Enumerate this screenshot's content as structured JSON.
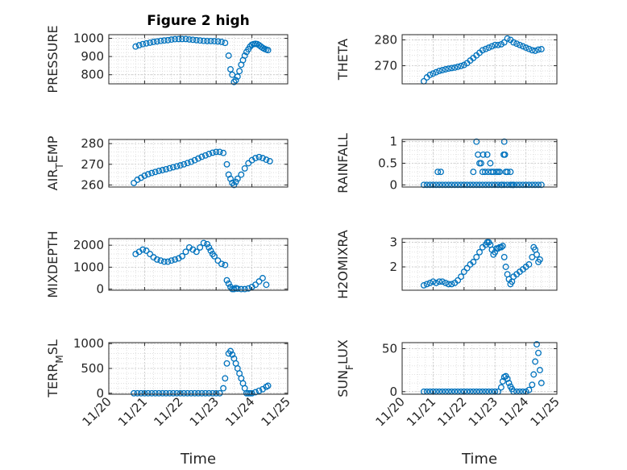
{
  "title": "Figure 2 high",
  "colors": {
    "marker": "#0072BD",
    "axis": "#262626",
    "grid": "#d9d9d9"
  },
  "chart_data": [
    {
      "type": "scatter",
      "ylabel": "PRESSURE",
      "ylim": [
        750,
        1020
      ],
      "yticks": [
        800,
        900,
        1000
      ],
      "ytick_labels": [
        "800",
        "900",
        "1000"
      ],
      "grid": true,
      "xlim": [
        20,
        25
      ],
      "xticks": [
        20,
        21,
        22,
        23,
        24,
        25
      ],
      "xtick_labels": [],
      "x": [
        20.75,
        20.85,
        20.95,
        21.05,
        21.15,
        21.25,
        21.35,
        21.45,
        21.55,
        21.65,
        21.75,
        21.85,
        21.95,
        22.05,
        22.15,
        22.25,
        22.35,
        22.45,
        22.55,
        22.65,
        22.75,
        22.85,
        22.95,
        23.05,
        23.15,
        23.25,
        23.35,
        23.4,
        23.45,
        23.5,
        23.55,
        23.6,
        23.65,
        23.7,
        23.75,
        23.8,
        23.85,
        23.9,
        23.95,
        24.0,
        24.05,
        24.1,
        24.15,
        24.2,
        24.25,
        24.3,
        24.35,
        24.4,
        24.45
      ],
      "y": [
        955,
        962,
        968,
        972,
        976,
        980,
        983,
        986,
        988,
        990,
        993,
        995,
        996,
        996,
        996,
        994,
        992,
        990,
        988,
        986,
        985,
        985,
        984,
        983,
        980,
        975,
        905,
        830,
        800,
        760,
        770,
        790,
        820,
        855,
        880,
        905,
        925,
        940,
        955,
        965,
        968,
        970,
        968,
        962,
        955,
        948,
        942,
        938,
        935
      ]
    },
    {
      "type": "scatter",
      "ylabel": "THETA",
      "ylim": [
        263,
        282
      ],
      "yticks": [
        270,
        280
      ],
      "ytick_labels": [
        "270",
        "280"
      ],
      "grid": true,
      "xlim": [
        20,
        25
      ],
      "xticks": [
        20,
        21,
        22,
        23,
        24,
        25
      ],
      "xtick_labels": [],
      "x": [
        20.7,
        20.8,
        20.9,
        21.0,
        21.1,
        21.2,
        21.3,
        21.4,
        21.5,
        21.6,
        21.7,
        21.8,
        21.9,
        22.0,
        22.1,
        22.2,
        22.3,
        22.4,
        22.5,
        22.6,
        22.7,
        22.8,
        22.9,
        23.0,
        23.1,
        23.2,
        23.3,
        23.4,
        23.5,
        23.6,
        23.7,
        23.8,
        23.9,
        24.0,
        24.1,
        24.2,
        24.3,
        24.4,
        24.5
      ],
      "y": [
        264,
        265.5,
        266.5,
        267,
        267.5,
        268,
        268.3,
        268.6,
        268.9,
        269.1,
        269.3,
        269.6,
        269.9,
        270.3,
        271,
        272,
        273,
        274,
        275,
        276,
        276.5,
        277,
        277.5,
        278,
        278,
        278.3,
        279,
        280.5,
        280,
        279,
        278.5,
        278,
        277.5,
        277,
        276.5,
        276,
        275.8,
        276.2,
        276.4
      ]
    },
    {
      "type": "scatter",
      "ylabel": "AIR_TEMP",
      "ylim": [
        259,
        282
      ],
      "yticks": [
        260,
        270,
        280
      ],
      "ytick_labels": [
        "260",
        "270",
        "280"
      ],
      "grid": true,
      "xlim": [
        20,
        25
      ],
      "xticks": [
        20,
        21,
        22,
        23,
        24,
        25
      ],
      "xtick_labels": [],
      "x": [
        20.7,
        20.8,
        20.9,
        21.0,
        21.1,
        21.2,
        21.3,
        21.4,
        21.5,
        21.6,
        21.7,
        21.8,
        21.9,
        22.0,
        22.1,
        22.2,
        22.3,
        22.4,
        22.5,
        22.6,
        22.7,
        22.8,
        22.9,
        23.0,
        23.1,
        23.2,
        23.3,
        23.35,
        23.4,
        23.45,
        23.5,
        23.55,
        23.6,
        23.7,
        23.8,
        23.9,
        24.0,
        24.1,
        24.2,
        24.3,
        24.4,
        24.5
      ],
      "y": [
        261,
        262.5,
        263.5,
        264.5,
        265.2,
        265.8,
        266.3,
        266.8,
        267.2,
        267.6,
        268.1,
        268.6,
        269,
        269.5,
        270,
        270.6,
        271.2,
        272,
        272.8,
        273.6,
        274.3,
        275,
        275.6,
        276,
        276,
        275.5,
        270,
        265,
        263,
        261,
        260,
        261.5,
        263,
        265,
        268,
        270.5,
        272,
        273,
        273.5,
        273,
        272.2,
        271.5
      ]
    },
    {
      "type": "scatter",
      "ylabel": "RAINFALL",
      "ylim": [
        -0.05,
        1.05
      ],
      "yticks": [
        0,
        0.5,
        1
      ],
      "ytick_labels": [
        "0",
        "0.5",
        "1"
      ],
      "grid": true,
      "xlim": [
        20,
        25
      ],
      "xticks": [
        20,
        21,
        22,
        23,
        24,
        25
      ],
      "xtick_labels": [],
      "x": [
        20.7,
        20.8,
        20.9,
        21.0,
        21.1,
        21.2,
        21.3,
        21.4,
        21.5,
        21.6,
        21.7,
        21.8,
        21.9,
        22.0,
        22.1,
        22.2,
        22.3,
        22.4,
        22.5,
        22.6,
        22.7,
        22.8,
        22.9,
        23.0,
        23.1,
        23.2,
        23.3,
        23.4,
        23.5,
        23.6,
        23.7,
        23.8,
        23.9,
        24.0,
        24.1,
        24.2,
        24.3,
        24.4,
        24.5,
        21.15,
        21.25,
        22.3,
        22.4,
        22.45,
        22.55,
        22.5,
        22.6,
        22.62,
        22.68,
        22.75,
        22.78,
        22.85,
        22.88,
        22.95,
        23.05,
        23.1,
        23.15,
        23.22,
        23.28,
        23.3,
        23.32,
        23.35,
        23.4,
        23.5,
        23.55,
        23.6
      ],
      "y": [
        0,
        0,
        0,
        0,
        0,
        0,
        0,
        0,
        0,
        0,
        0,
        0,
        0,
        0,
        0,
        0,
        0,
        0,
        0,
        0,
        0,
        0,
        0,
        0,
        0,
        0,
        0,
        0,
        0,
        0,
        0,
        0,
        0,
        0,
        0,
        0,
        0,
        0,
        0,
        0.3,
        0.3,
        0.3,
        1,
        0.7,
        0.5,
        0.5,
        0.3,
        0.7,
        0.3,
        0.7,
        0.3,
        0.5,
        0.3,
        0.3,
        0.3,
        0.3,
        0.3,
        0,
        0.7,
        1,
        0.7,
        0.3,
        0.3,
        0.3,
        0,
        0
      ]
    },
    {
      "type": "scatter",
      "ylabel": "MIXDEPTH",
      "ylim": [
        -50,
        2300
      ],
      "yticks": [
        0,
        1000,
        2000
      ],
      "ytick_labels": [
        "0",
        "1000",
        "2000"
      ],
      "grid": true,
      "xlim": [
        20,
        25
      ],
      "xticks": [
        20,
        21,
        22,
        23,
        24,
        25
      ],
      "xtick_labels": [],
      "x": [
        20.75,
        20.85,
        20.95,
        21.05,
        21.15,
        21.25,
        21.35,
        21.45,
        21.55,
        21.65,
        21.75,
        21.85,
        21.95,
        22.05,
        22.15,
        22.25,
        22.35,
        22.45,
        22.55,
        22.65,
        22.75,
        22.8,
        22.85,
        22.9,
        22.95,
        23.05,
        23.15,
        23.25,
        23.3,
        23.35,
        23.4,
        23.45,
        23.5,
        23.55,
        23.6,
        23.7,
        23.8,
        23.9,
        24.0,
        24.1,
        24.2,
        24.3,
        24.4
      ],
      "y": [
        1600,
        1700,
        1800,
        1750,
        1600,
        1450,
        1350,
        1300,
        1250,
        1250,
        1300,
        1350,
        1400,
        1500,
        1700,
        1900,
        1800,
        1700,
        1900,
        2100,
        2050,
        1900,
        1750,
        1600,
        1500,
        1300,
        1150,
        1100,
        400,
        250,
        100,
        0,
        0,
        50,
        20,
        0,
        0,
        30,
        100,
        200,
        350,
        500,
        200
      ]
    },
    {
      "type": "scatter",
      "ylabel": "H2OMIXRA",
      "ylim": [
        1.05,
        3.15
      ],
      "yticks": [
        2,
        3
      ],
      "ytick_labels": [
        "2",
        "3"
      ],
      "grid": true,
      "xlim": [
        20,
        25
      ],
      "xticks": [
        20,
        21,
        22,
        23,
        24,
        25
      ],
      "xtick_labels": [],
      "x": [
        20.7,
        20.8,
        20.9,
        21.0,
        21.1,
        21.2,
        21.3,
        21.4,
        21.5,
        21.6,
        21.7,
        21.8,
        21.9,
        22.0,
        22.1,
        22.2,
        22.3,
        22.4,
        22.5,
        22.6,
        22.7,
        22.75,
        22.8,
        22.85,
        22.9,
        22.95,
        23.0,
        23.05,
        23.1,
        23.15,
        23.2,
        23.25,
        23.3,
        23.35,
        23.4,
        23.45,
        23.5,
        23.55,
        23.6,
        23.7,
        23.8,
        23.9,
        24.0,
        24.1,
        24.2,
        24.25,
        24.3,
        24.35,
        24.4,
        24.45
      ],
      "y": [
        1.25,
        1.3,
        1.35,
        1.4,
        1.35,
        1.4,
        1.4,
        1.35,
        1.3,
        1.3,
        1.35,
        1.45,
        1.6,
        1.8,
        1.95,
        2.1,
        2.2,
        2.4,
        2.6,
        2.8,
        2.9,
        3.0,
        3.0,
        2.9,
        2.7,
        2.5,
        2.6,
        2.75,
        2.75,
        2.8,
        2.8,
        2.85,
        2.4,
        2.0,
        1.7,
        1.5,
        1.3,
        1.4,
        1.6,
        1.7,
        1.8,
        1.9,
        2.0,
        2.1,
        2.4,
        2.8,
        2.7,
        2.5,
        2.2,
        2.3
      ]
    },
    {
      "type": "scatter",
      "ylabel": "TERR_MSL",
      "ylim": [
        -20,
        1020
      ],
      "yticks": [
        0,
        500,
        1000
      ],
      "ytick_labels": [
        "0",
        "500",
        "1000"
      ],
      "grid": true,
      "xlim": [
        20,
        25
      ],
      "xticks": [
        20,
        21,
        22,
        23,
        24,
        25
      ],
      "xtick_labels": [
        "11/20",
        "11/21",
        "11/22",
        "11/23",
        "11/24",
        "11/25"
      ],
      "xlabel": "Time",
      "x": [
        20.7,
        20.8,
        20.9,
        21.0,
        21.1,
        21.2,
        21.3,
        21.4,
        21.5,
        21.6,
        21.7,
        21.8,
        21.9,
        22.0,
        22.1,
        22.2,
        22.3,
        22.4,
        22.5,
        22.6,
        22.7,
        22.8,
        22.9,
        23.0,
        23.1,
        23.2,
        23.25,
        23.3,
        23.35,
        23.4,
        23.45,
        23.5,
        23.55,
        23.6,
        23.65,
        23.7,
        23.75,
        23.8,
        23.85,
        23.9,
        23.95,
        24.0,
        24.1,
        24.2,
        24.3,
        24.4,
        24.45
      ],
      "y": [
        0,
        0,
        0,
        0,
        0,
        0,
        0,
        0,
        0,
        0,
        0,
        0,
        0,
        0,
        0,
        0,
        0,
        0,
        0,
        0,
        0,
        0,
        0,
        0,
        0,
        100,
        300,
        600,
        800,
        850,
        780,
        700,
        600,
        500,
        400,
        300,
        200,
        100,
        0,
        0,
        0,
        0,
        20,
        50,
        80,
        130,
        150
      ]
    },
    {
      "type": "scatter",
      "ylabel": "SUN_FLUX",
      "ylim": [
        -3,
        57
      ],
      "yticks": [
        0,
        50
      ],
      "ytick_labels": [
        "0",
        "50"
      ],
      "grid": true,
      "xlim": [
        20,
        25
      ],
      "xticks": [
        20,
        21,
        22,
        23,
        24,
        25
      ],
      "xtick_labels": [
        "11/20",
        "11/21",
        "11/22",
        "11/23",
        "11/24",
        "11/25"
      ],
      "xlabel": "Time",
      "x": [
        20.7,
        20.8,
        20.9,
        21.0,
        21.1,
        21.2,
        21.3,
        21.4,
        21.5,
        21.6,
        21.7,
        21.8,
        21.9,
        22.0,
        22.1,
        22.2,
        22.3,
        22.4,
        22.5,
        22.6,
        22.7,
        22.8,
        22.9,
        23.0,
        23.1,
        23.2,
        23.25,
        23.3,
        23.35,
        23.4,
        23.45,
        23.5,
        23.55,
        23.6,
        23.7,
        23.8,
        23.9,
        24.0,
        24.1,
        24.2,
        24.25,
        24.3,
        24.35,
        24.4,
        24.45,
        24.5
      ],
      "y": [
        0,
        0,
        0,
        0,
        0,
        0,
        0,
        0,
        0,
        0,
        0,
        0,
        0,
        0,
        0,
        0,
        0,
        0,
        0,
        0,
        0,
        0,
        0,
        0,
        0,
        5,
        12,
        17,
        18,
        15,
        10,
        6,
        3,
        0,
        0,
        0,
        0,
        0,
        2,
        8,
        20,
        35,
        55,
        45,
        25,
        10
      ]
    }
  ]
}
